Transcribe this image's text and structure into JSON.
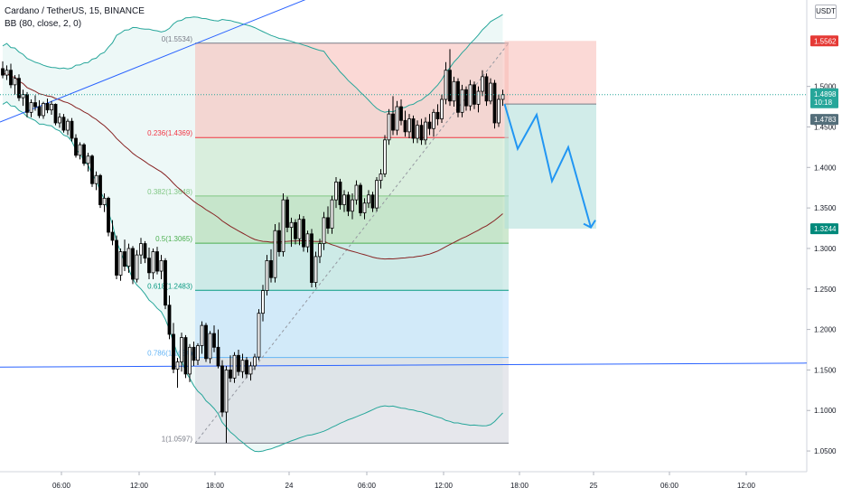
{
  "header": {
    "title_line": "Cardano / TetherUS, 15, BINANCE",
    "indicator_line": "BB (80, close, 2, 0)",
    "currency": "USDT"
  },
  "colors": {
    "candle": "#000000",
    "bb_band": "#26a69a",
    "bb_basis": "#872323",
    "bb_fill": "#e6f5f3",
    "trendline": "#2962ff",
    "projection": "#2196f3",
    "stop_zone": "#f7b9b5",
    "target_zone": "#b2dfdb",
    "entry_badge": "#546e7a",
    "target_badge": "#00897b",
    "stop_badge": "#e53935"
  },
  "chart_data": {
    "type": "candlestick",
    "symbol": "Cardano / TetherUS",
    "timeframe": "15",
    "exchange": "BINANCE",
    "ylim": [
      1.03,
      1.6
    ],
    "y_ticks": [
      "1.5000",
      "1.4500",
      "1.4000",
      "1.3500",
      "1.3000",
      "1.2500",
      "1.2000",
      "1.1500",
      "1.1000",
      "1.0500"
    ],
    "x_ticks": [
      "06:00",
      "12:00",
      "18:00",
      "24",
      "06:00",
      "12:00",
      "18:00",
      "25",
      "06:00",
      "12:00"
    ],
    "price_labels": [
      {
        "value": "1.5562",
        "kind": "stop"
      },
      {
        "value": "1.4898",
        "kind": "last"
      },
      {
        "value": "10:18",
        "kind": "countdown"
      },
      {
        "value": "1.4783",
        "kind": "entry"
      },
      {
        "value": "1.3244",
        "kind": "target"
      }
    ],
    "fibonacci": [
      {
        "ratio": "0",
        "price": 1.5534,
        "label": "0(1.5534)",
        "color": "#787b86"
      },
      {
        "ratio": "0.236",
        "price": 1.4369,
        "label": "0.236(1.4369)",
        "color": "#f23645"
      },
      {
        "ratio": "0.382",
        "price": 1.3648,
        "label": "0.382(1.3648)",
        "color": "#81c784"
      },
      {
        "ratio": "0.5",
        "price": 1.3065,
        "label": "0.5(1.3065)",
        "color": "#4caf50"
      },
      {
        "ratio": "0.618",
        "price": 1.2483,
        "label": "0.618(1.2483)",
        "color": "#089981"
      },
      {
        "ratio": "0.786",
        "price": 1.1654,
        "label": "0.786(1.1654)",
        "color": "#64b5f6"
      },
      {
        "ratio": "1",
        "price": 1.0597,
        "label": "1(1.0597)",
        "color": "#787b86"
      }
    ],
    "fib_zone_colors": [
      "#f7b9b5",
      "#c8e6c9",
      "#a5d6a7",
      "#b2dfdb",
      "#bbdefb",
      "#d1d4dc"
    ],
    "position": {
      "entry": 1.4783,
      "stop": 1.5562,
      "target": 1.3244
    },
    "projection_path": [
      1.4783,
      1.423,
      1.465,
      1.383,
      1.425,
      1.326
    ],
    "horizontal_line": [
      1.1535,
      1.1585
    ],
    "ascending_trendline": [
      1.456,
      1.655
    ],
    "candles": [
      [
        1.522,
        1.531,
        1.51,
        1.514
      ],
      [
        1.514,
        1.526,
        1.508,
        1.52
      ],
      [
        1.52,
        1.528,
        1.498,
        1.502
      ],
      [
        1.502,
        1.514,
        1.49,
        1.51
      ],
      [
        1.51,
        1.515,
        1.482,
        1.486
      ],
      [
        1.486,
        1.496,
        1.476,
        1.49
      ],
      [
        1.49,
        1.493,
        1.462,
        1.468
      ],
      [
        1.468,
        1.484,
        1.462,
        1.48
      ],
      [
        1.48,
        1.489,
        1.47,
        1.475
      ],
      [
        1.475,
        1.483,
        1.461,
        1.464
      ],
      [
        1.464,
        1.481,
        1.46,
        1.479
      ],
      [
        1.479,
        1.485,
        1.467,
        1.471
      ],
      [
        1.471,
        1.482,
        1.465,
        1.478
      ],
      [
        1.478,
        1.479,
        1.452,
        1.455
      ],
      [
        1.455,
        1.467,
        1.449,
        1.462
      ],
      [
        1.462,
        1.466,
        1.443,
        1.446
      ],
      [
        1.446,
        1.46,
        1.44,
        1.457
      ],
      [
        1.457,
        1.461,
        1.432,
        1.436
      ],
      [
        1.436,
        1.441,
        1.412,
        1.415
      ],
      [
        1.415,
        1.431,
        1.41,
        1.428
      ],
      [
        1.428,
        1.43,
        1.402,
        1.405
      ],
      [
        1.405,
        1.418,
        1.395,
        1.414
      ],
      [
        1.414,
        1.416,
        1.376,
        1.38
      ],
      [
        1.38,
        1.395,
        1.372,
        1.39
      ],
      [
        1.39,
        1.392,
        1.35,
        1.354
      ],
      [
        1.354,
        1.368,
        1.345,
        1.362
      ],
      [
        1.362,
        1.364,
        1.315,
        1.32
      ],
      [
        1.32,
        1.335,
        1.304,
        1.31
      ],
      [
        1.31,
        1.316,
        1.262,
        1.267
      ],
      [
        1.267,
        1.3,
        1.26,
        1.296
      ],
      [
        1.296,
        1.311,
        1.272,
        1.278
      ],
      [
        1.278,
        1.306,
        1.27,
        1.3
      ],
      [
        1.3,
        1.303,
        1.256,
        1.262
      ],
      [
        1.262,
        1.298,
        1.258,
        1.292
      ],
      [
        1.292,
        1.313,
        1.281,
        1.306
      ],
      [
        1.306,
        1.309,
        1.282,
        1.288
      ],
      [
        1.288,
        1.301,
        1.262,
        1.27
      ],
      [
        1.27,
        1.3,
        1.262,
        1.296
      ],
      [
        1.296,
        1.302,
        1.268,
        1.272
      ],
      [
        1.272,
        1.292,
        1.262,
        1.285
      ],
      [
        1.285,
        1.288,
        1.225,
        1.23
      ],
      [
        1.23,
        1.242,
        1.188,
        1.194
      ],
      [
        1.194,
        1.208,
        1.146,
        1.151
      ],
      [
        1.151,
        1.165,
        1.128,
        1.16
      ],
      [
        1.16,
        1.196,
        1.148,
        1.19
      ],
      [
        1.19,
        1.193,
        1.14,
        1.145
      ],
      [
        1.145,
        1.182,
        1.135,
        1.178
      ],
      [
        1.178,
        1.185,
        1.155,
        1.162
      ],
      [
        1.162,
        1.183,
        1.156,
        1.18
      ],
      [
        1.18,
        1.21,
        1.17,
        1.205
      ],
      [
        1.205,
        1.208,
        1.16,
        1.164
      ],
      [
        1.164,
        1.198,
        1.158,
        1.195
      ],
      [
        1.195,
        1.205,
        1.172,
        1.178
      ],
      [
        1.178,
        1.2,
        1.152,
        1.155
      ],
      [
        1.155,
        1.162,
        1.092,
        1.098
      ],
      [
        1.098,
        1.155,
        1.06,
        1.15
      ],
      [
        1.15,
        1.168,
        1.135,
        1.14
      ],
      [
        1.14,
        1.172,
        1.134,
        1.168
      ],
      [
        1.168,
        1.175,
        1.143,
        1.148
      ],
      [
        1.148,
        1.17,
        1.14,
        1.162
      ],
      [
        1.162,
        1.166,
        1.14,
        1.145
      ],
      [
        1.145,
        1.16,
        1.137,
        1.155
      ],
      [
        1.155,
        1.17,
        1.15,
        1.166
      ],
      [
        1.166,
        1.225,
        1.162,
        1.22
      ],
      [
        1.22,
        1.255,
        1.21,
        1.248
      ],
      [
        1.248,
        1.292,
        1.242,
        1.285
      ],
      [
        1.285,
        1.299,
        1.258,
        1.264
      ],
      [
        1.264,
        1.33,
        1.258,
        1.322
      ],
      [
        1.322,
        1.332,
        1.29,
        1.296
      ],
      [
        1.296,
        1.368,
        1.29,
        1.36
      ],
      [
        1.36,
        1.364,
        1.32,
        1.326
      ],
      [
        1.326,
        1.338,
        1.302,
        1.332
      ],
      [
        1.332,
        1.336,
        1.305,
        1.312
      ],
      [
        1.312,
        1.342,
        1.304,
        1.336
      ],
      [
        1.336,
        1.34,
        1.296,
        1.302
      ],
      [
        1.302,
        1.322,
        1.295,
        1.318
      ],
      [
        1.318,
        1.324,
        1.252,
        1.258
      ],
      [
        1.258,
        1.296,
        1.252,
        1.29
      ],
      [
        1.29,
        1.312,
        1.282,
        1.306
      ],
      [
        1.306,
        1.345,
        1.298,
        1.338
      ],
      [
        1.338,
        1.352,
        1.318,
        1.325
      ],
      [
        1.325,
        1.365,
        1.318,
        1.36
      ],
      [
        1.36,
        1.388,
        1.35,
        1.382
      ],
      [
        1.382,
        1.386,
        1.348,
        1.354
      ],
      [
        1.354,
        1.372,
        1.345,
        1.366
      ],
      [
        1.366,
        1.37,
        1.34,
        1.346
      ],
      [
        1.346,
        1.368,
        1.336,
        1.36
      ],
      [
        1.36,
        1.384,
        1.354,
        1.378
      ],
      [
        1.378,
        1.381,
        1.34,
        1.344
      ],
      [
        1.344,
        1.362,
        1.336,
        1.356
      ],
      [
        1.356,
        1.372,
        1.35,
        1.366
      ],
      [
        1.366,
        1.37,
        1.345,
        1.35
      ],
      [
        1.35,
        1.388,
        1.346,
        1.384
      ],
      [
        1.384,
        1.398,
        1.374,
        1.392
      ],
      [
        1.392,
        1.44,
        1.388,
        1.434
      ],
      [
        1.434,
        1.472,
        1.428,
        1.466
      ],
      [
        1.466,
        1.488,
        1.44,
        1.446
      ],
      [
        1.446,
        1.482,
        1.44,
        1.475
      ],
      [
        1.475,
        1.484,
        1.452,
        1.458
      ],
      [
        1.458,
        1.47,
        1.438,
        1.444
      ],
      [
        1.444,
        1.466,
        1.436,
        1.46
      ],
      [
        1.46,
        1.464,
        1.43,
        1.436
      ],
      [
        1.436,
        1.458,
        1.43,
        1.452
      ],
      [
        1.452,
        1.46,
        1.428,
        1.434
      ],
      [
        1.434,
        1.462,
        1.428,
        1.456
      ],
      [
        1.456,
        1.466,
        1.44,
        1.448
      ],
      [
        1.448,
        1.472,
        1.438,
        1.468
      ],
      [
        1.468,
        1.478,
        1.452,
        1.46
      ],
      [
        1.46,
        1.49,
        1.455,
        1.484
      ],
      [
        1.484,
        1.53,
        1.478,
        1.52
      ],
      [
        1.52,
        1.546,
        1.476,
        1.482
      ],
      [
        1.482,
        1.512,
        1.475,
        1.506
      ],
      [
        1.506,
        1.51,
        1.462,
        1.468
      ],
      [
        1.468,
        1.502,
        1.462,
        1.496
      ],
      [
        1.496,
        1.5,
        1.47,
        1.476
      ],
      [
        1.476,
        1.508,
        1.47,
        1.502
      ],
      [
        1.502,
        1.506,
        1.472,
        1.478
      ],
      [
        1.478,
        1.5,
        1.468,
        1.494
      ],
      [
        1.494,
        1.52,
        1.488,
        1.512
      ],
      [
        1.512,
        1.516,
        1.476,
        1.482
      ],
      [
        1.482,
        1.51,
        1.478,
        1.504
      ],
      [
        1.504,
        1.508,
        1.448,
        1.455
      ],
      [
        1.455,
        1.49,
        1.45,
        1.484
      ],
      [
        1.484,
        1.496,
        1.476,
        1.4898
      ]
    ]
  }
}
